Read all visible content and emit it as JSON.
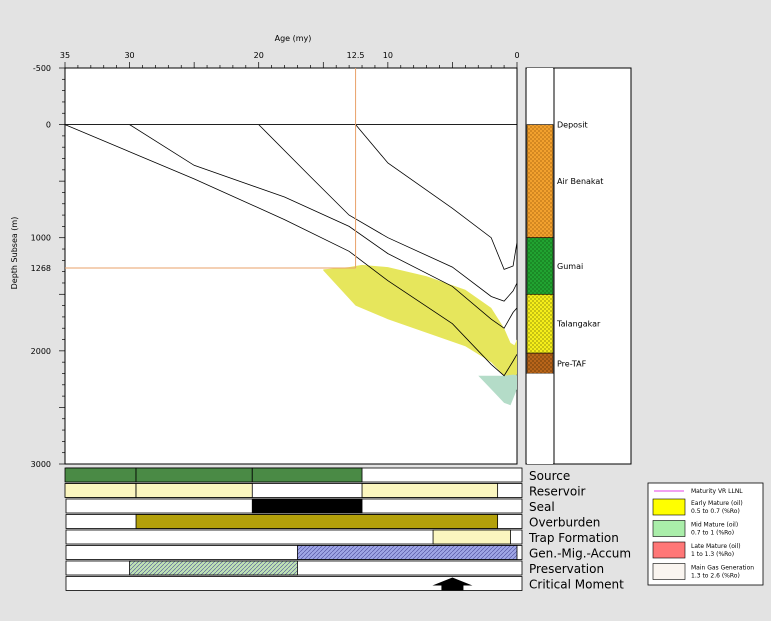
{
  "chart_data": {
    "type": "area",
    "xlabel": "Age (my)",
    "ylabel": "Depth Subsea (m)",
    "x_ticks": [
      35,
      30,
      20,
      12.5,
      10,
      0
    ],
    "y_ticks": [
      -500,
      0,
      1000,
      1268,
      2000,
      3000
    ],
    "xlim": [
      35,
      0
    ],
    "ylim": [
      -500,
      3000
    ],
    "critical_marker": {
      "age": 12.5,
      "depth": 1268
    },
    "burial_curves": [
      {
        "x": [
          35,
          25,
          18,
          13,
          10,
          5,
          2,
          1,
          0.3,
          0
        ],
        "y": [
          0,
          480,
          840,
          1120,
          1380,
          1760,
          2120,
          2220,
          2090,
          2030
        ]
      },
      {
        "x": [
          30,
          25,
          18,
          13,
          10,
          5,
          2,
          1,
          0.3,
          0
        ],
        "y": [
          0,
          360,
          640,
          900,
          1140,
          1430,
          1720,
          1800,
          1660,
          1620
        ]
      },
      {
        "x": [
          20,
          16,
          13,
          10,
          5,
          2,
          1,
          0.3,
          0
        ],
        "y": [
          0,
          460,
          800,
          1000,
          1260,
          1520,
          1560,
          1470,
          1400
        ]
      },
      {
        "x": [
          12.5,
          10,
          5,
          2,
          1,
          0.3,
          0
        ],
        "y": [
          0,
          340,
          740,
          1000,
          1280,
          1250,
          1040
        ]
      }
    ],
    "maturity_zones": [
      {
        "name": "Early Mature (oil)",
        "color": "#e6e65c",
        "x": [
          15,
          13,
          12,
          10,
          7,
          4,
          2,
          1,
          0.5,
          0.2,
          0,
          0,
          0.3,
          1,
          2,
          4,
          7,
          10,
          12.5,
          15
        ],
        "y": [
          1280,
          1260,
          1240,
          1260,
          1340,
          1460,
          1620,
          1800,
          1930,
          1950,
          1900,
          2210,
          2220,
          2220,
          2100,
          1960,
          1840,
          1720,
          1600,
          1290
        ]
      },
      {
        "name": "Mid Mature (oil)",
        "color": "#b4dcc8",
        "x": [
          3,
          2,
          1,
          0.3,
          0,
          0,
          0.5,
          1,
          2
        ],
        "y": [
          2220,
          2220,
          2220,
          2210,
          2215,
          2340,
          2480,
          2460,
          2340
        ]
      }
    ],
    "lithology_column": [
      {
        "name": "Deposit",
        "top": -500,
        "bottom": 0,
        "color": "#ffffff"
      },
      {
        "name": "Air Benakat",
        "top": 0,
        "bottom": 1000,
        "color": "#f2a12e"
      },
      {
        "name": "Gumai",
        "top": 1000,
        "bottom": 1500,
        "color": "#21a331"
      },
      {
        "name": "Talangakar",
        "top": 1500,
        "bottom": 2020,
        "color": "#f5ee1a"
      },
      {
        "name": "Pre-TAF",
        "top": 2020,
        "bottom": 2200,
        "color": "#b8651a"
      },
      {
        "name": "",
        "top": 2200,
        "bottom": 3000,
        "color": "#ffffff"
      }
    ],
    "events": [
      {
        "name": "Source",
        "bars": [
          {
            "from": 35,
            "to": 29.5,
            "color": "#4a8a45"
          },
          {
            "from": 29.5,
            "to": 20.5,
            "color": "#4a8a45"
          },
          {
            "from": 20.5,
            "to": 12,
            "color": "#4a8a45"
          }
        ]
      },
      {
        "name": "Reservoir",
        "bars": [
          {
            "from": 35,
            "to": 29.5,
            "color": "#fbf6bf"
          },
          {
            "from": 29.5,
            "to": 20.5,
            "color": "#fbf6bf"
          },
          {
            "from": 12,
            "to": 1.5,
            "color": "#fbf6bf"
          }
        ]
      },
      {
        "name": "Seal",
        "bars": [
          {
            "from": 20.5,
            "to": 12,
            "color": "#000000"
          }
        ]
      },
      {
        "name": "Overburden",
        "bars": [
          {
            "from": 29.5,
            "to": 1.5,
            "color": "#b3a00a"
          }
        ]
      },
      {
        "name": "Trap Formation",
        "bars": [
          {
            "from": 6.5,
            "to": 0.5,
            "color": "#fbf6bf"
          }
        ]
      },
      {
        "name": "Gen.-Mig.-Accum",
        "bars": [
          {
            "from": 17,
            "to": 0,
            "color": "#9fa6e6",
            "hatch": true
          }
        ]
      },
      {
        "name": "Preservation",
        "bars": [
          {
            "from": 30,
            "to": 17,
            "color": "#bfe3b4",
            "hatch": true
          }
        ]
      },
      {
        "name": "Critical Moment",
        "bars": [],
        "marker_age": 5
      }
    ],
    "legend": [
      {
        "type": "line",
        "color": "#ee82ee",
        "label1": "Maturity VR LLNL",
        "label2": ""
      },
      {
        "type": "box",
        "color": "#ffff00",
        "label1": "Early Mature (oil)",
        "label2": "0.5 to 0.7 (%Ro)"
      },
      {
        "type": "box",
        "color": "#aaeeaa",
        "label1": "Mid Mature (oil)",
        "label2": "0.7 to 1 (%Ro)"
      },
      {
        "type": "box",
        "color": "#ff7777",
        "label1": "Late Mature (oil)",
        "label2": "1 to 1.3 (%Ro)"
      },
      {
        "type": "box",
        "color": "#faf5f0",
        "label1": "Main Gas Generation",
        "label2": "1.3 to 2.6 (%Ro)"
      }
    ]
  }
}
